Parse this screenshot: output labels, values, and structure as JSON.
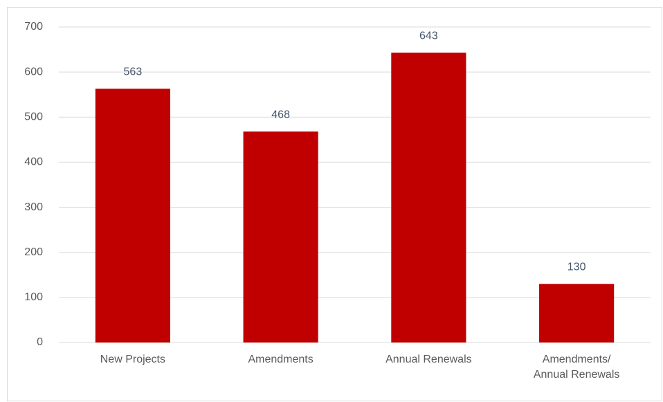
{
  "chart_data": {
    "type": "bar",
    "categories": [
      "New Projects",
      "Amendments",
      "Annual Renewals",
      "Amendments/\nAnnual Renewals"
    ],
    "values": [
      563,
      468,
      643,
      130
    ],
    "color": "#c00000",
    "ylim": [
      0,
      700
    ],
    "yticks": [
      0,
      100,
      200,
      300,
      400,
      500,
      600,
      700
    ],
    "grid": true
  }
}
